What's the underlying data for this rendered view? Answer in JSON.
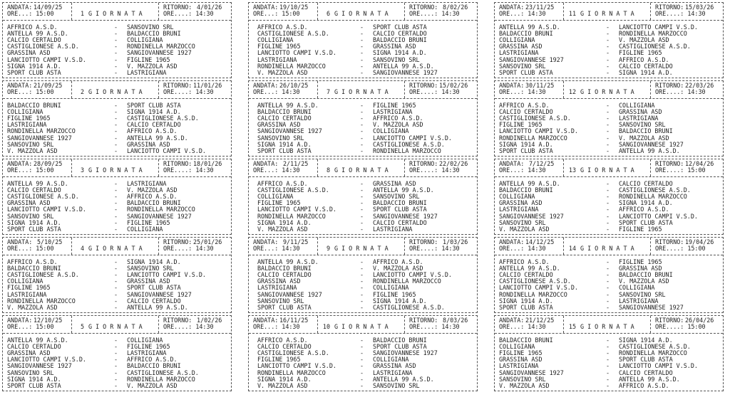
{
  "labels": {
    "andata": "ANDATA:",
    "ritorno": "RITORNO:",
    "ore_andata": "ORE...:",
    "ore_ritorno": "ORE....:",
    "giornata": "G I O R N A T A",
    "separator": "-"
  },
  "giornate": [
    {
      "number": "1",
      "andata": "14/09/25",
      "ore_andata": "15:00",
      "ritorno": "4/01/26",
      "ore_ritorno": "14:30",
      "matches": [
        {
          "home": "AFFRICO A.S.D.",
          "away": "SANSOVINO SRL"
        },
        {
          "home": "ANTELLA 99 A.S.D.",
          "away": "BALDACCIO BRUNI"
        },
        {
          "home": "CALCIO CERTALDO",
          "away": "COLLIGIANA"
        },
        {
          "home": "CASTIGLIONESE A.S.D.",
          "away": "RONDINELLA MARZOCCO"
        },
        {
          "home": "GRASSINA ASD",
          "away": "SANGIOVANNESE 1927"
        },
        {
          "home": "LANCIOTTO CAMPI V.S.D.",
          "away": "FIGLINE 1965"
        },
        {
          "home": "SIGNA 1914 A.D.",
          "away": "V. MAZZOLA ASD"
        },
        {
          "home": "SPORT CLUB ASTA",
          "away": "LASTRIGIANA"
        }
      ]
    },
    {
      "number": "2",
      "andata": "21/09/25",
      "ore_andata": "15:00",
      "ritorno": "11/01/26",
      "ore_ritorno": "14:30",
      "matches": [
        {
          "home": "BALDACCIO BRUNI",
          "away": "SPORT CLUB ASTA"
        },
        {
          "home": "COLLIGIANA",
          "away": "SIGNA 1914 A.D."
        },
        {
          "home": "FIGLINE 1965",
          "away": "CASTIGLIONESE A.S.D."
        },
        {
          "home": "LASTRIGIANA",
          "away": "CALCIO CERTALDO"
        },
        {
          "home": "RONDINELLA MARZOCCO",
          "away": "AFFRICO A.S.D."
        },
        {
          "home": "SANGIOVANNESE 1927",
          "away": "ANTELLA 99 A.S.D."
        },
        {
          "home": "SANSOVINO SRL",
          "away": "GRASSINA ASD"
        },
        {
          "home": "V. MAZZOLA ASD",
          "away": "LANCIOTTO CAMPI V.S.D."
        }
      ]
    },
    {
      "number": "3",
      "andata": "28/09/25",
      "ore_andata": "15:00",
      "ritorno": "18/01/26",
      "ore_ritorno": "14:30",
      "matches": [
        {
          "home": "ANTELLA 99 A.S.D.",
          "away": "LASTRIGIANA"
        },
        {
          "home": "CALCIO CERTALDO",
          "away": "V. MAZZOLA ASD"
        },
        {
          "home": "CASTIGLIONESE A.S.D.",
          "away": "AFFRICO A.S.D."
        },
        {
          "home": "GRASSINA ASD",
          "away": "BALDACCIO BRUNI"
        },
        {
          "home": "LANCIOTTO CAMPI V.S.D.",
          "away": "RONDINELLA MARZOCCO"
        },
        {
          "home": "SANSOVINO SRL",
          "away": "SANGIOVANNESE 1927"
        },
        {
          "home": "SIGNA 1914 A.D.",
          "away": "FIGLINE 1965"
        },
        {
          "home": "SPORT CLUB ASTA",
          "away": "COLLIGIANA"
        }
      ]
    },
    {
      "number": "4",
      "andata": "5/10/25",
      "ore_andata": "15:00",
      "ritorno": "25/01/26",
      "ore_ritorno": "14:30",
      "matches": [
        {
          "home": "AFFRICO A.S.D.",
          "away": "SIGNA 1914 A.D."
        },
        {
          "home": "BALDACCIO BRUNI",
          "away": "SANSOVINO SRL"
        },
        {
          "home": "CASTIGLIONESE A.S.D.",
          "away": "LANCIOTTO CAMPI V.S.D."
        },
        {
          "home": "COLLIGIANA",
          "away": "GRASSINA ASD"
        },
        {
          "home": "FIGLINE 1965",
          "away": "SPORT CLUB ASTA"
        },
        {
          "home": "LASTRIGIANA",
          "away": "SANGIOVANNESE 1927"
        },
        {
          "home": "RONDINELLA MARZOCCO",
          "away": "CALCIO CERTALDO"
        },
        {
          "home": "V. MAZZOLA ASD",
          "away": "ANTELLA 99 A.S.D."
        }
      ]
    },
    {
      "number": "5",
      "andata": "12/10/25",
      "ore_andata": "15:00",
      "ritorno": "1/02/26",
      "ore_ritorno": "14:30",
      "matches": [
        {
          "home": "ANTELLA 99 A.S.D.",
          "away": "COLLIGIANA"
        },
        {
          "home": "CALCIO CERTALDO",
          "away": "FIGLINE 1965"
        },
        {
          "home": "GRASSINA ASD",
          "away": "LASTRIGIANA"
        },
        {
          "home": "LANCIOTTO CAMPI V.S.D.",
          "away": "AFFRICO A.S.D."
        },
        {
          "home": "SANGIOVANNESE 1927",
          "away": "BALDACCIO BRUNI"
        },
        {
          "home": "SANSOVINO SRL",
          "away": "CASTIGLIONESE A.S.D."
        },
        {
          "home": "SIGNA 1914 A.D.",
          "away": "RONDINELLA MARZOCCO"
        },
        {
          "home": "SPORT CLUB ASTA",
          "away": "V. MAZZOLA ASD"
        }
      ]
    },
    {
      "number": "6",
      "andata": "19/10/25",
      "ore_andata": "15:00",
      "ritorno": "8/02/26",
      "ore_ritorno": "14:30",
      "matches": [
        {
          "home": "AFFRICO A.S.D.",
          "away": "SPORT CLUB ASTA"
        },
        {
          "home": "CASTIGLIONESE A.S.D.",
          "away": "CALCIO CERTALDO"
        },
        {
          "home": "COLLIGIANA",
          "away": "BALDACCIO BRUNI"
        },
        {
          "home": "FIGLINE 1965",
          "away": "GRASSINA ASD"
        },
        {
          "home": "LANCIOTTO CAMPI V.S.D.",
          "away": "SIGNA 1914 A.D."
        },
        {
          "home": "LASTRIGIANA",
          "away": "SANSOVINO SRL"
        },
        {
          "home": "RONDINELLA MARZOCCO",
          "away": "ANTELLA 99 A.S.D."
        },
        {
          "home": "V. MAZZOLA ASD",
          "away": "SANGIOVANNESE 1927"
        }
      ]
    },
    {
      "number": "7",
      "andata": "26/10/25",
      "ore_andata": "14:30",
      "ritorno": "15/02/26",
      "ore_ritorno": "14:30",
      "matches": [
        {
          "home": "ANTELLA 99 A.S.D.",
          "away": "FIGLINE 1965"
        },
        {
          "home": "BALDACCIO BRUNI",
          "away": "LASTRIGIANA"
        },
        {
          "home": "CALCIO CERTALDO",
          "away": "AFFRICO A.S.D."
        },
        {
          "home": "GRASSINA ASD",
          "away": "V. MAZZOLA ASD"
        },
        {
          "home": "SANGIOVANNESE 1927",
          "away": "COLLIGIANA"
        },
        {
          "home": "SANSOVINO SRL",
          "away": "LANCIOTTO CAMPI V.S.D."
        },
        {
          "home": "SIGNA 1914 A.D.",
          "away": "CASTIGLIONESE A.S.D."
        },
        {
          "home": "SPORT CLUB ASTA",
          "away": "RONDINELLA MARZOCCO"
        }
      ]
    },
    {
      "number": "8",
      "andata": "2/11/25",
      "ore_andata": "14:30",
      "ritorno": "22/02/26",
      "ore_ritorno": "14:30",
      "matches": [
        {
          "home": "AFFRICO A.S.D.",
          "away": "GRASSINA ASD"
        },
        {
          "home": "CASTIGLIONESE A.S.D.",
          "away": "ANTELLA 99 A.S.D."
        },
        {
          "home": "COLLIGIANA",
          "away": "SANSOVINO SRL"
        },
        {
          "home": "FIGLINE 1965",
          "away": "BALDACCIO BRUNI"
        },
        {
          "home": "LANCIOTTO CAMPI V.S.D.",
          "away": "SPORT CLUB ASTA"
        },
        {
          "home": "RONDINELLA MARZOCCO",
          "away": "SANGIOVANNESE 1927"
        },
        {
          "home": "SIGNA 1914 A.D.",
          "away": "CALCIO CERTALDO"
        },
        {
          "home": "V. MAZZOLA ASD",
          "away": "LASTRIGIANA"
        }
      ]
    },
    {
      "number": "9",
      "andata": "9/11/25",
      "ore_andata": "14:30",
      "ritorno": "1/03/26",
      "ore_ritorno": "14:30",
      "matches": [
        {
          "home": "ANTELLA 99 A.S.D.",
          "away": "AFFRICO A.S.D."
        },
        {
          "home": "BALDACCIO BRUNI",
          "away": "V. MAZZOLA ASD"
        },
        {
          "home": "CALCIO CERTALDO",
          "away": "LANCIOTTO CAMPI V.S.D."
        },
        {
          "home": "GRASSINA ASD",
          "away": "RONDINELLA MARZOCCO"
        },
        {
          "home": "LASTRIGIANA",
          "away": "COLLIGIANA"
        },
        {
          "home": "SANGIOVANNESE 1927",
          "away": "FIGLINE 1965"
        },
        {
          "home": "SANSOVINO SRL",
          "away": "SIGNA 1914 A.D."
        },
        {
          "home": "SPORT CLUB ASTA",
          "away": "CASTIGLIONESE A.S.D."
        }
      ]
    },
    {
      "number": "10",
      "andata": "16/11/25",
      "ore_andata": "14:30",
      "ritorno": "8/03/26",
      "ore_ritorno": "14:30",
      "matches": [
        {
          "home": "AFFRICO A.S.D.",
          "away": "BALDACCIO BRUNI"
        },
        {
          "home": "CALCIO CERTALDO",
          "away": "SPORT CLUB ASTA"
        },
        {
          "home": "CASTIGLIONESE A.S.D.",
          "away": "SANGIOVANNESE 1927"
        },
        {
          "home": "FIGLINE 1965",
          "away": "COLLIGIANA"
        },
        {
          "home": "LANCIOTTO CAMPI V.S.D.",
          "away": "GRASSINA ASD"
        },
        {
          "home": "RONDINELLA MARZOCCO",
          "away": "LASTRIGIANA"
        },
        {
          "home": "SIGNA 1914 A.D.",
          "away": "ANTELLA 99 A.S.D."
        },
        {
          "home": "V. MAZZOLA ASD",
          "away": "SANSOVINO SRL"
        }
      ]
    },
    {
      "number": "11",
      "andata": "23/11/25",
      "ore_andata": "14:30",
      "ritorno": "15/03/26",
      "ore_ritorno": "14:30",
      "matches": [
        {
          "home": "ANTELLA 99 A.S.D.",
          "away": "LANCIOTTO CAMPI V.S.D."
        },
        {
          "home": "BALDACCIO BRUNI",
          "away": "RONDINELLA MARZOCCO"
        },
        {
          "home": "COLLIGIANA",
          "away": "V. MAZZOLA ASD"
        },
        {
          "home": "GRASSINA ASD",
          "away": "CASTIGLIONESE A.S.D."
        },
        {
          "home": "LASTRIGIANA",
          "away": "FIGLINE 1965"
        },
        {
          "home": "SANGIOVANNESE 1927",
          "away": "AFFRICO A.S.D."
        },
        {
          "home": "SANSOVINO SRL",
          "away": "CALCIO CERTALDO"
        },
        {
          "home": "SPORT CLUB ASTA",
          "away": "SIGNA 1914 A.D."
        }
      ]
    },
    {
      "number": "12",
      "andata": "30/11/25",
      "ore_andata": "14:30",
      "ritorno": "22/03/26",
      "ore_ritorno": "14:30",
      "matches": [
        {
          "home": "AFFRICO A.S.D.",
          "away": "COLLIGIANA"
        },
        {
          "home": "CALCIO CERTALDO",
          "away": "GRASSINA ASD"
        },
        {
          "home": "CASTIGLIONESE A.S.D.",
          "away": "LASTRIGIANA"
        },
        {
          "home": "FIGLINE 1965",
          "away": "SANSOVINO SRL"
        },
        {
          "home": "LANCIOTTO CAMPI V.S.D.",
          "away": "BALDACCIO BRUNI"
        },
        {
          "home": "RONDINELLA MARZOCCO",
          "away": "V. MAZZOLA ASD"
        },
        {
          "home": "SIGNA 1914 A.D.",
          "away": "SANGIOVANNESE 1927"
        },
        {
          "home": "SPORT CLUB ASTA",
          "away": "ANTELLA 99 A.S.D."
        }
      ]
    },
    {
      "number": "13",
      "andata": "7/12/25",
      "ore_andata": "14:30",
      "ritorno": "12/04/26",
      "ore_ritorno": "15:00",
      "matches": [
        {
          "home": "ANTELLA 99 A.S.D.",
          "away": "CALCIO CERTALDO"
        },
        {
          "home": "BALDACCIO BRUNI",
          "away": "CASTIGLIONESE A.S.D."
        },
        {
          "home": "COLLIGIANA",
          "away": "RONDINELLA MARZOCCO"
        },
        {
          "home": "GRASSINA ASD",
          "away": "SIGNA 1914 A.D."
        },
        {
          "home": "LASTRIGIANA",
          "away": "AFFRICO A.S.D."
        },
        {
          "home": "SANGIOVANNESE 1927",
          "away": "LANCIOTTO CAMPI V.S.D."
        },
        {
          "home": "SANSOVINO SRL",
          "away": "SPORT CLUB ASTA"
        },
        {
          "home": "V. MAZZOLA ASD",
          "away": "FIGLINE 1965"
        }
      ]
    },
    {
      "number": "14",
      "andata": "14/12/25",
      "ore_andata": "14:30",
      "ritorno": "19/04/26",
      "ore_ritorno": "15:00",
      "matches": [
        {
          "home": "AFFRICO A.S.D.",
          "away": "FIGLINE 1965"
        },
        {
          "home": "ANTELLA 99 A.S.D.",
          "away": "GRASSINA ASD"
        },
        {
          "home": "CALCIO CERTALDO",
          "away": "BALDACCIO BRUNI"
        },
        {
          "home": "CASTIGLIONESE A.S.D.",
          "away": "V. MAZZOLA ASD"
        },
        {
          "home": "LANCIOTTO CAMPI V.S.D.",
          "away": "COLLIGIANA"
        },
        {
          "home": "RONDINELLA MARZOCCO",
          "away": "SANSOVINO SRL"
        },
        {
          "home": "SIGNA 1914 A.D.",
          "away": "LASTRIGIANA"
        },
        {
          "home": "SPORT CLUB ASTA",
          "away": "SANGIOVANNESE 1927"
        }
      ]
    },
    {
      "number": "15",
      "andata": "21/12/25",
      "ore_andata": "14:30",
      "ritorno": "26/04/26",
      "ore_ritorno": "15:00",
      "matches": [
        {
          "home": "BALDACCIO BRUNI",
          "away": "SIGNA 1914 A.D."
        },
        {
          "home": "COLLIGIANA",
          "away": "CASTIGLIONESE A.S.D."
        },
        {
          "home": "FIGLINE 1965",
          "away": "RONDINELLA MARZOCCO"
        },
        {
          "home": "GRASSINA ASD",
          "away": "SPORT CLUB ASTA"
        },
        {
          "home": "LASTRIGIANA",
          "away": "LANCIOTTO CAMPI V.S.D."
        },
        {
          "home": "SANGIOVANNESE 1927",
          "away": "CALCIO CERTALDO"
        },
        {
          "home": "SANSOVINO SRL",
          "away": "ANTELLA 99 A.S.D."
        },
        {
          "home": "V. MAZZOLA ASD",
          "away": "AFFRICO A.S.D."
        }
      ]
    }
  ]
}
